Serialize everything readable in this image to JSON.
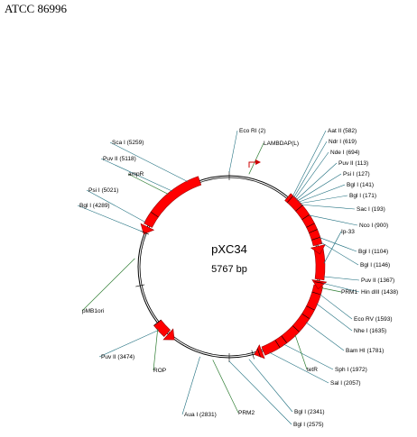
{
  "header": {
    "accession": "ATCC 86996"
  },
  "plasmid": {
    "name": "pXC34",
    "size": "5767 bp"
  },
  "map_colors": {
    "backbone": "#000000",
    "feature_fill": "#ff0000",
    "feature_stroke": "#990000",
    "site_line": "#1f6f7f",
    "feature_line": "#2e7d32",
    "promoter": "#cc0000"
  },
  "sites": [
    {
      "label": "Eco RI (2)"
    },
    {
      "label": "Aat II (582)"
    },
    {
      "label": "Ndr I (619)"
    },
    {
      "label": "Nde I (694)"
    },
    {
      "label": "Puv II (113)"
    },
    {
      "label": "Psi I (127)"
    },
    {
      "label": "Bgl I (141)"
    },
    {
      "label": "Bgl I (171)"
    },
    {
      "label": "Sac I (193)"
    },
    {
      "label": "Nco I (900)"
    },
    {
      "label": "Bgl I (1104)"
    },
    {
      "label": "Bgl I (1146)"
    },
    {
      "label": "Puv II (1367)"
    },
    {
      "label": "Hin dIII (1438)"
    },
    {
      "label": "Eco RV (1593)"
    },
    {
      "label": "Nhe I (1635)"
    },
    {
      "label": "Bam HI (1781)"
    },
    {
      "label": "Sph I (1972)"
    },
    {
      "label": "Sal I (2057)"
    },
    {
      "label": "Bgl I (2341)"
    },
    {
      "label": "Bgl I (2575)"
    },
    {
      "label": "Aua I (2831)"
    },
    {
      "label": "Puv II (3474)"
    },
    {
      "label": "Bgl I (4289)"
    },
    {
      "label": "Psi I (5021)"
    },
    {
      "label": "Puv II (5118)"
    },
    {
      "label": "Sca I (5259)"
    }
  ],
  "features": [
    {
      "label": "LAMBDAP(L)"
    },
    {
      "label": "Ip-33"
    },
    {
      "label": "PRM1"
    },
    {
      "label": "tetR"
    },
    {
      "label": "PRM2"
    },
    {
      "label": "ROP"
    },
    {
      "label": "pMB1ori"
    },
    {
      "label": "ampR"
    }
  ]
}
